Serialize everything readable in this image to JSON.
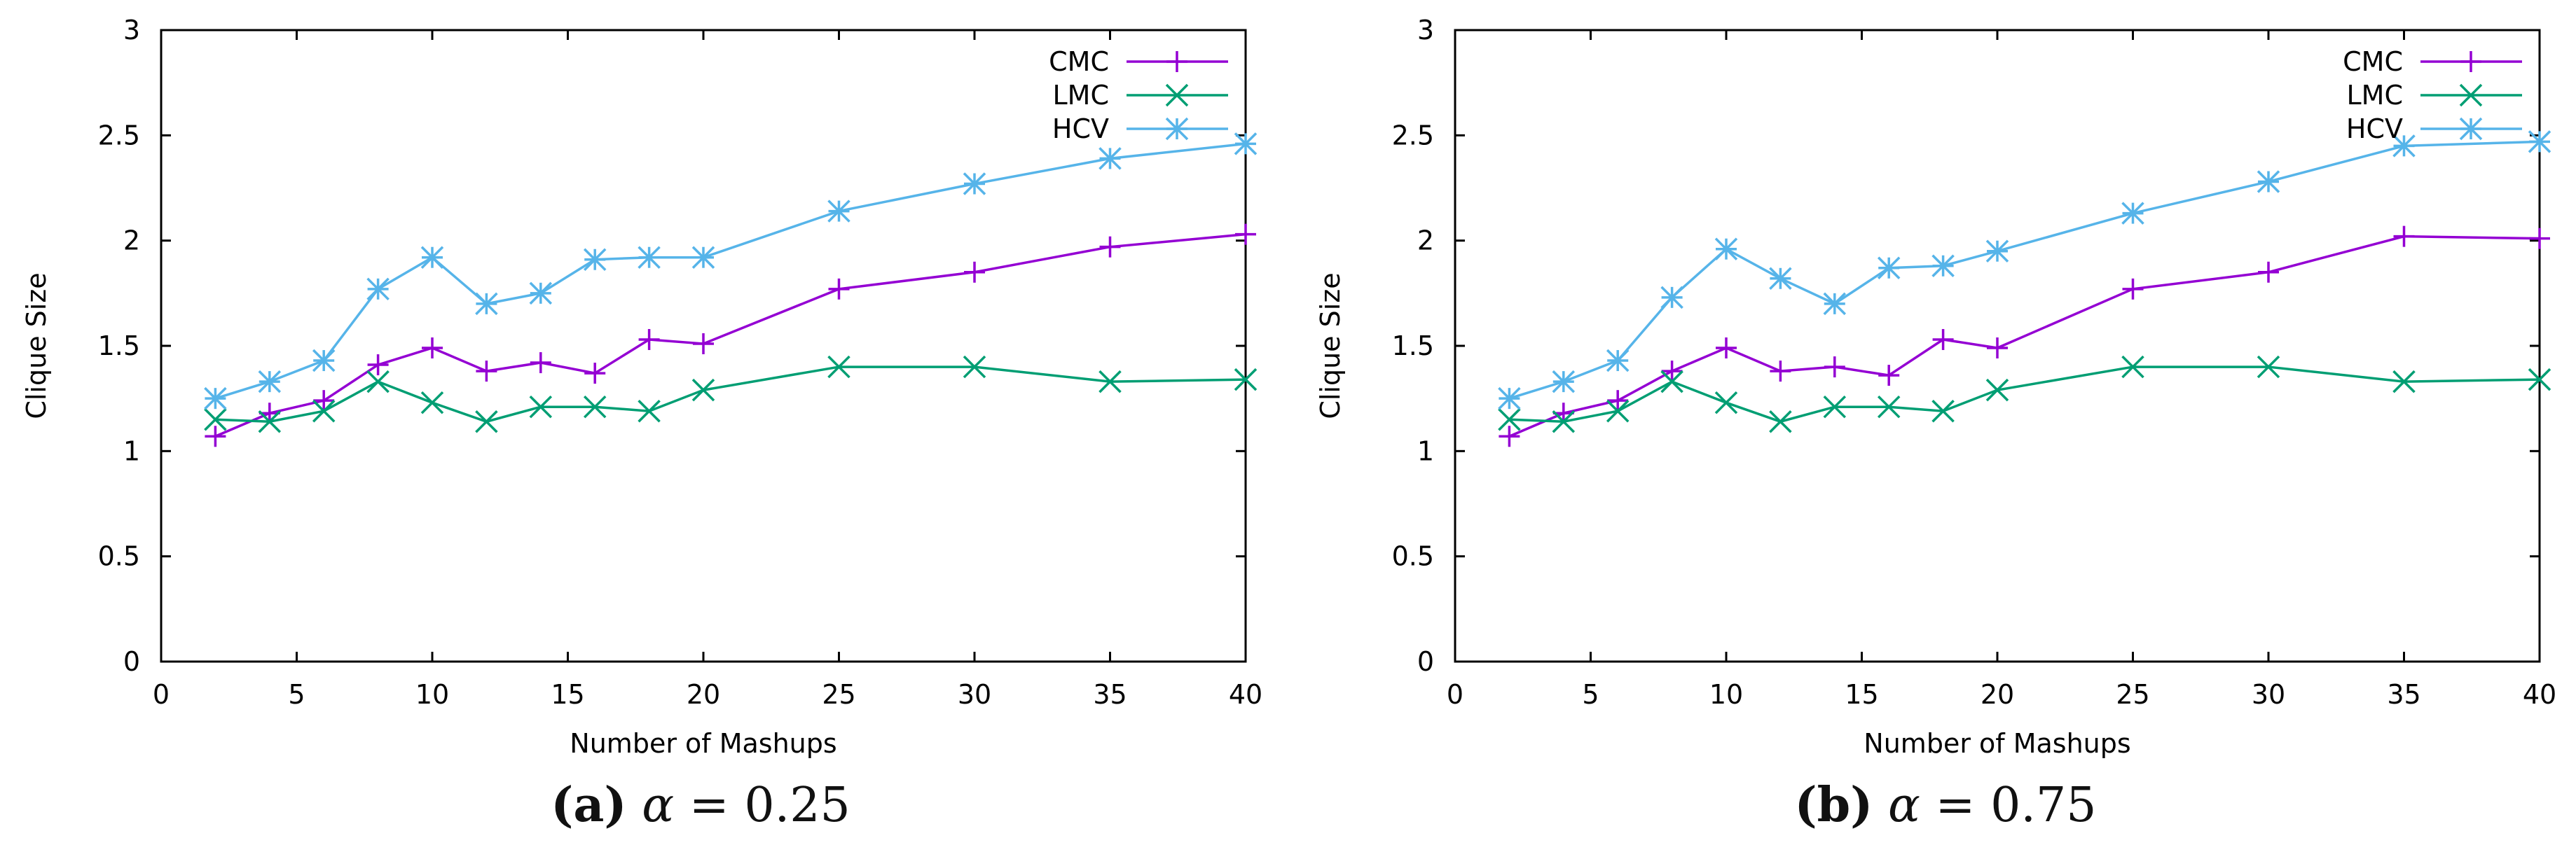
{
  "chart_data": [
    {
      "type": "line",
      "xlabel": "Number of Mashups",
      "ylabel": "Clique Size",
      "xlim": [
        0,
        40
      ],
      "ylim": [
        0,
        3
      ],
      "xticks": [
        "0",
        "5",
        "10",
        "15",
        "20",
        "25",
        "30",
        "35",
        "40"
      ],
      "yticks": [
        "0",
        "0.5",
        "1",
        "1.5",
        "2",
        "2.5",
        "3"
      ],
      "legend_position": "top-right",
      "x": [
        2,
        4,
        6,
        8,
        10,
        12,
        14,
        16,
        18,
        20,
        25,
        30,
        35,
        40
      ],
      "series": [
        {
          "name": "CMC",
          "color": "#9400d3",
          "marker": "plus",
          "values": [
            1.07,
            1.18,
            1.24,
            1.41,
            1.49,
            1.38,
            1.42,
            1.37,
            1.53,
            1.51,
            1.77,
            1.85,
            1.97,
            2.03
          ]
        },
        {
          "name": "LMC",
          "color": "#009e73",
          "marker": "cross",
          "values": [
            1.15,
            1.14,
            1.19,
            1.33,
            1.23,
            1.14,
            1.21,
            1.21,
            1.19,
            1.29,
            1.4,
            1.4,
            1.33,
            1.34
          ]
        },
        {
          "name": "HCV",
          "color": "#56b4e9",
          "marker": "star",
          "values": [
            1.25,
            1.33,
            1.43,
            1.77,
            1.92,
            1.7,
            1.75,
            1.91,
            1.92,
            1.92,
            2.14,
            2.27,
            2.39,
            2.46
          ]
        }
      ],
      "caption": {
        "label": "(a)",
        "symbol": "α",
        "equals": "=",
        "value": "0.25"
      }
    },
    {
      "type": "line",
      "xlabel": "Number of Mashups",
      "ylabel": "Clique Size",
      "xlim": [
        0,
        40
      ],
      "ylim": [
        0,
        3
      ],
      "xticks": [
        "0",
        "5",
        "10",
        "15",
        "20",
        "25",
        "30",
        "35",
        "40"
      ],
      "yticks": [
        "0",
        "0.5",
        "1",
        "1.5",
        "2",
        "2.5",
        "3"
      ],
      "legend_position": "top-right",
      "x": [
        2,
        4,
        6,
        8,
        10,
        12,
        14,
        16,
        18,
        20,
        25,
        30,
        35,
        40
      ],
      "series": [
        {
          "name": "CMC",
          "color": "#9400d3",
          "marker": "plus",
          "values": [
            1.07,
            1.18,
            1.24,
            1.38,
            1.49,
            1.38,
            1.4,
            1.36,
            1.53,
            1.49,
            1.77,
            1.85,
            2.02,
            2.01
          ]
        },
        {
          "name": "LMC",
          "color": "#009e73",
          "marker": "cross",
          "values": [
            1.15,
            1.14,
            1.19,
            1.33,
            1.23,
            1.14,
            1.21,
            1.21,
            1.19,
            1.29,
            1.4,
            1.4,
            1.33,
            1.34
          ]
        },
        {
          "name": "HCV",
          "color": "#56b4e9",
          "marker": "star",
          "values": [
            1.25,
            1.33,
            1.43,
            1.73,
            1.96,
            1.82,
            1.7,
            1.87,
            1.88,
            1.95,
            2.13,
            2.28,
            2.45,
            2.47
          ]
        }
      ],
      "caption": {
        "label": "(b)",
        "symbol": "α",
        "equals": "=",
        "value": "0.75"
      }
    }
  ]
}
